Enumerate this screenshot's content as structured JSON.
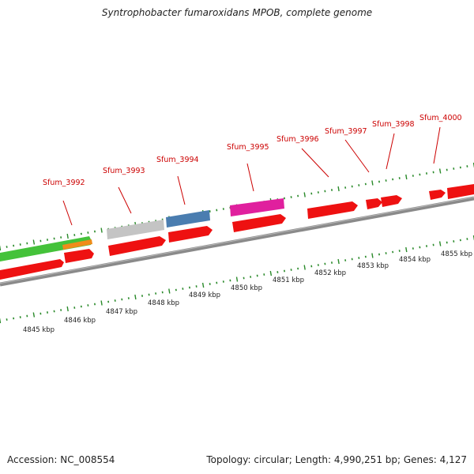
{
  "title": "Syntrophobacter fumaroxidans MPOB, complete genome",
  "accession": "Accession: NC_008554",
  "summary": "Topology: circular; Length: 4,990,251 bp; Genes: 4,127",
  "colors": {
    "cds_forward": "#ee1111",
    "backbone": "#8a8a8a",
    "tick": "#2a8a2a",
    "gene_label": "#cc0000",
    "feature_green": "#44c23a",
    "feature_orange": "#f08c1a",
    "feature_gray": "#c4c4c4",
    "feature_blue": "#4a7db0",
    "feature_magenta": "#e0209e"
  },
  "gene_labels": [
    "Sfum_3992",
    "Sfum_3993",
    "Sfum_3994",
    "Sfum_3995",
    "Sfum_3996",
    "Sfum_3997",
    "Sfum_3998",
    "Sfum_4000"
  ],
  "scale_labels": [
    "4845 kbp",
    "4846 kbp",
    "4847 kbp",
    "4848 kbp",
    "4849 kbp",
    "4850 kbp",
    "4851 kbp",
    "4852 kbp",
    "4853 kbp",
    "4854 kbp",
    "4855 kbp"
  ]
}
